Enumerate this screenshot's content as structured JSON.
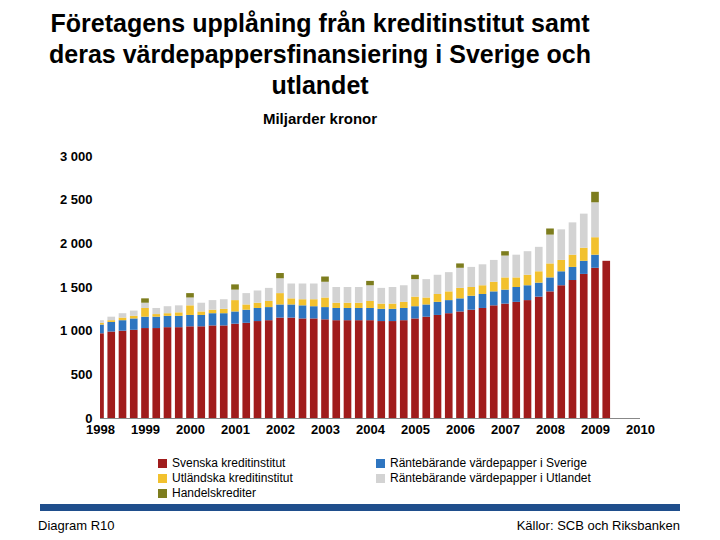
{
  "chart_data": {
    "type": "bar",
    "stacked": true,
    "title": "Företagens upplåning från kreditinstitut samt deras värdepappersfinansiering i Sverige och utlandet",
    "subtitle": "Miljarder kronor",
    "note": "Diagram R10",
    "source": "Källor: SCB och Riksbanken",
    "x": [
      1998,
      1998.25,
      1998.5,
      1998.75,
      1999,
      1999.25,
      1999.5,
      1999.75,
      2000,
      2000.25,
      2000.5,
      2000.75,
      2001,
      2001.25,
      2001.5,
      2001.75,
      2002,
      2002.25,
      2002.5,
      2002.75,
      2003,
      2003.25,
      2003.5,
      2003.75,
      2004,
      2004.25,
      2004.5,
      2004.75,
      2005,
      2005.25,
      2005.5,
      2005.75,
      2006,
      2006.25,
      2006.5,
      2006.75,
      2007,
      2007.25,
      2007.5,
      2007.75,
      2008,
      2008.25,
      2008.5,
      2008.75,
      2009,
      2009.25
    ],
    "xlim": [
      1998,
      2010
    ],
    "xticks": [
      1998,
      1999,
      2000,
      2001,
      2002,
      2003,
      2004,
      2005,
      2006,
      2007,
      2008,
      2009,
      2010
    ],
    "ylim": [
      0,
      3000
    ],
    "yticks": [
      0,
      500,
      {
        "value": 1000,
        "label": "1 000"
      },
      {
        "value": 1500,
        "label": "1 500"
      },
      {
        "value": 2000,
        "label": "2 000"
      },
      {
        "value": 2500,
        "label": "2 500"
      },
      {
        "value": 3000,
        "label": "3 000"
      }
    ],
    "grid": false,
    "series": [
      {
        "name": "Svenska kreditinstitut",
        "color": "#a01c1c",
        "values": [
          970,
          990,
          1000,
          1010,
          1030,
          1030,
          1040,
          1040,
          1050,
          1050,
          1060,
          1060,
          1080,
          1090,
          1110,
          1120,
          1150,
          1150,
          1140,
          1140,
          1130,
          1120,
          1120,
          1120,
          1120,
          1110,
          1110,
          1120,
          1140,
          1160,
          1180,
          1200,
          1220,
          1240,
          1260,
          1290,
          1310,
          1330,
          1350,
          1390,
          1450,
          1520,
          1580,
          1650,
          1720,
          1800
        ]
      },
      {
        "name": "Räntebärande värdepapper i Sverige",
        "color": "#2e75c0",
        "values": [
          100,
          110,
          120,
          130,
          130,
          130,
          130,
          130,
          130,
          130,
          140,
          140,
          140,
          150,
          150,
          150,
          150,
          150,
          150,
          140,
          140,
          140,
          140,
          140,
          140,
          140,
          140,
          140,
          140,
          140,
          150,
          150,
          150,
          160,
          160,
          160,
          160,
          170,
          170,
          160,
          160,
          160,
          150,
          150,
          150,
          null
        ]
      },
      {
        "name": "Utländska kreditinstitut",
        "color": "#f2c12e",
        "values": [
          20,
          20,
          30,
          30,
          100,
          30,
          30,
          40,
          110,
          40,
          40,
          50,
          130,
          60,
          60,
          70,
          130,
          70,
          70,
          80,
          110,
          60,
          60,
          60,
          80,
          60,
          60,
          70,
          110,
          80,
          90,
          100,
          120,
          100,
          100,
          110,
          140,
          110,
          120,
          130,
          160,
          130,
          140,
          150,
          200,
          null
        ]
      },
      {
        "name": "Räntebärande värdepapper i Utlandet",
        "color": "#d3d3d3",
        "values": [
          30,
          40,
          50,
          60,
          60,
          70,
          80,
          80,
          90,
          100,
          110,
          110,
          120,
          130,
          140,
          150,
          170,
          170,
          180,
          180,
          180,
          180,
          180,
          180,
          180,
          180,
          190,
          190,
          200,
          210,
          220,
          220,
          230,
          230,
          240,
          250,
          250,
          260,
          270,
          280,
          330,
          350,
          370,
          390,
          400,
          null
        ]
      },
      {
        "name": "Handelskrediter",
        "color": "#7d7d1e",
        "values": [
          null,
          null,
          null,
          null,
          50,
          null,
          null,
          null,
          50,
          null,
          null,
          null,
          60,
          null,
          null,
          null,
          60,
          null,
          null,
          null,
          60,
          null,
          null,
          null,
          50,
          null,
          null,
          null,
          50,
          null,
          null,
          null,
          50,
          null,
          null,
          null,
          50,
          null,
          null,
          null,
          70,
          null,
          null,
          null,
          120,
          null
        ]
      }
    ]
  }
}
